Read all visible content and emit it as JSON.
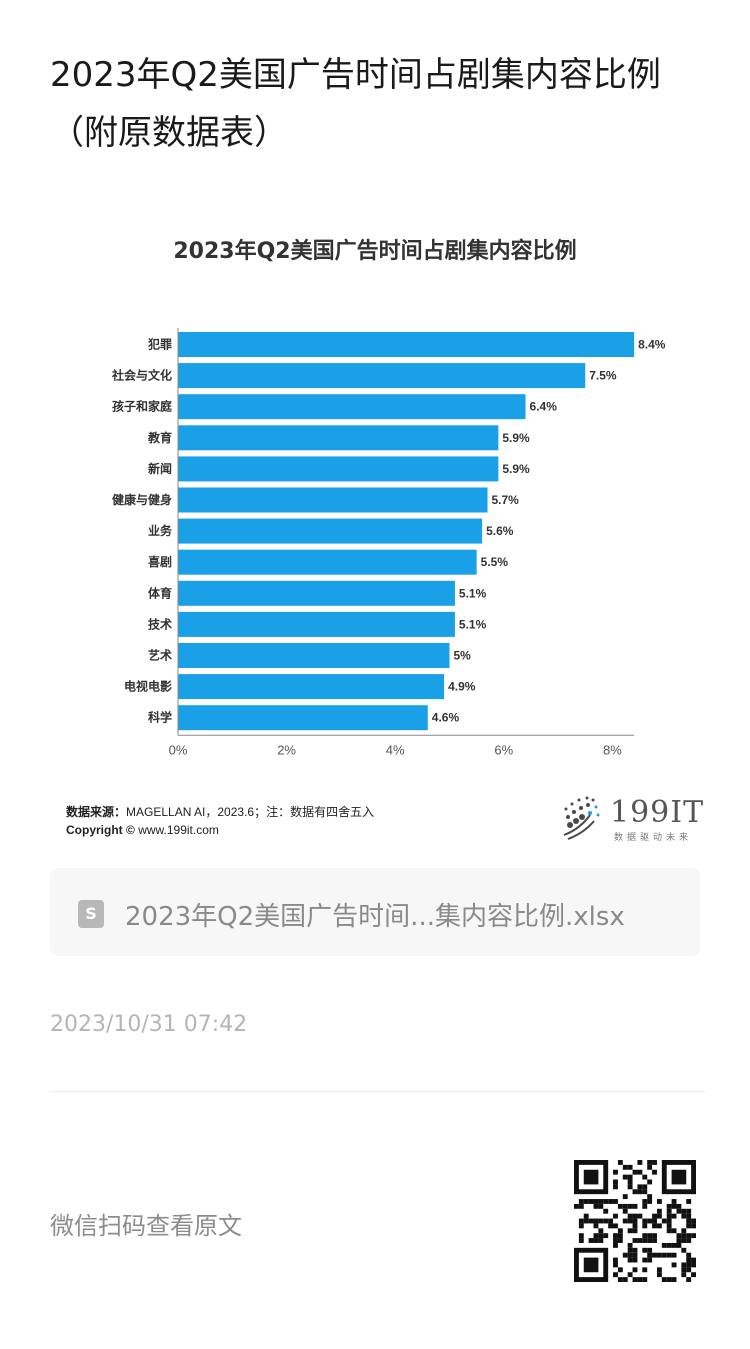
{
  "article": {
    "title": "2023年Q2美国广告时间占剧集内容比例（附原数据表）"
  },
  "chart_data": {
    "type": "bar",
    "orientation": "horizontal",
    "title": "2023年Q2美国广告时间占剧集内容比例",
    "categories": [
      "犯罪",
      "社会与文化",
      "孩子和家庭",
      "教育",
      "新闻",
      "健康与健身",
      "业务",
      "喜剧",
      "体育",
      "技术",
      "艺术",
      "电视电影",
      "科学"
    ],
    "values": [
      8.4,
      7.5,
      6.4,
      5.9,
      5.9,
      5.7,
      5.6,
      5.5,
      5.1,
      5.1,
      5.0,
      4.9,
      4.6
    ],
    "value_labels": [
      "8.4%",
      "7.5%",
      "6.4%",
      "5.9%",
      "5.9%",
      "5.7%",
      "5.6%",
      "5.5%",
      "5.1%",
      "5.1%",
      "5%",
      "4.9%",
      "4.6%"
    ],
    "xticks": [
      "0%",
      "2%",
      "4%",
      "6%",
      "8%"
    ],
    "xlim": [
      0,
      8.4
    ],
    "xlabel": "",
    "ylabel": "",
    "grid": false,
    "bar_color": "#1aa0e6"
  },
  "source": {
    "label": "数据来源：",
    "text": "MAGELLAN AI，2023.6；注：数据有四舍五入",
    "copyright_label": "Copyright ©",
    "copyright_text": "www.199it.com"
  },
  "logo": {
    "text": "199IT",
    "subtitle": "数据驱动未来"
  },
  "attachment": {
    "icon": "spreadsheet-file-icon",
    "icon_glyph": "S",
    "name": "2023年Q2美国广告时间...集内容比例.xlsx"
  },
  "timestamp": "2023/10/31 07:42",
  "qr": {
    "caption": "微信扫码查看原文",
    "icon": "qr-code-icon"
  }
}
